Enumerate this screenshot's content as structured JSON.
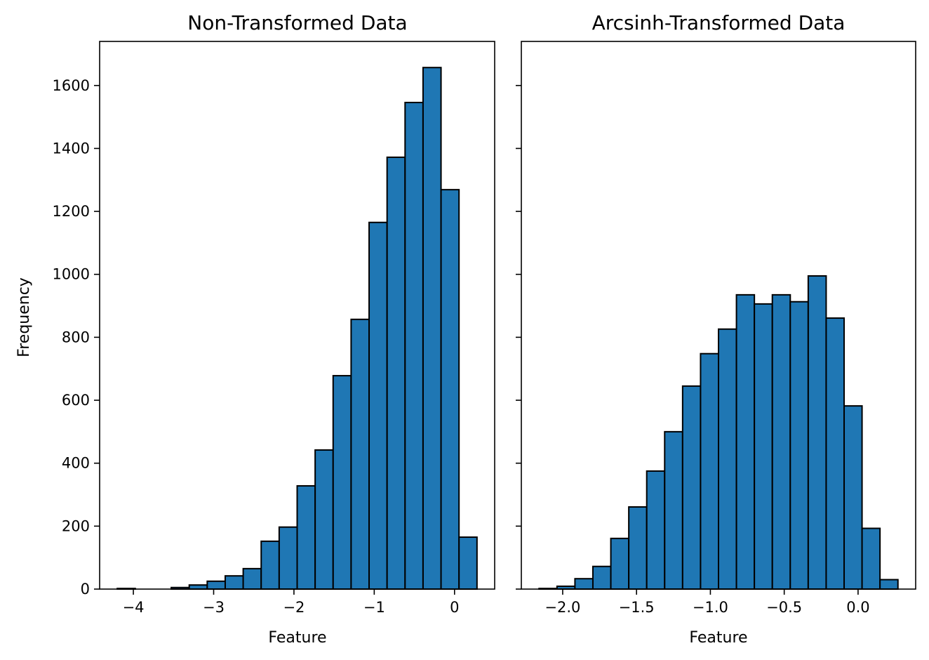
{
  "chart_data": [
    {
      "type": "bar",
      "subtype": "histogram",
      "title": "Non-Transformed Data",
      "xlabel": "Feature",
      "ylabel": "Frequency",
      "xlim": [
        -4.42,
        0.5
      ],
      "ylim": [
        0,
        1740
      ],
      "xticks": [
        -4,
        -3,
        -2,
        -1,
        0
      ],
      "xtick_labels": [
        "−4",
        "−3",
        "−2",
        "−1",
        "0"
      ],
      "yticks": [
        0,
        200,
        400,
        600,
        800,
        1000,
        1200,
        1400,
        1600
      ],
      "ytick_labels": [
        "0",
        "200",
        "400",
        "600",
        "800",
        "1000",
        "1200",
        "1400",
        "1600"
      ],
      "bin_start": -4.2,
      "bin_width": 0.224,
      "values": [
        2,
        0,
        0,
        5,
        13,
        25,
        42,
        65,
        152,
        197,
        328,
        442,
        678,
        857,
        1165,
        1372,
        1546,
        1657,
        1269,
        165
      ],
      "grid": false
    },
    {
      "type": "bar",
      "subtype": "histogram",
      "title": "Arcsinh-Transformed Data",
      "xlabel": "Feature",
      "ylabel": "",
      "xlim": [
        -2.28,
        0.39
      ],
      "ylim": [
        0,
        1740
      ],
      "xticks": [
        -2.0,
        -1.5,
        -1.0,
        -0.5,
        0.0
      ],
      "xtick_labels": [
        "−2.0",
        "−1.5",
        "−1.0",
        "−0.5",
        "0.0"
      ],
      "yticks": [
        0,
        200,
        400,
        600,
        800,
        1000,
        1200,
        1400,
        1600
      ],
      "ytick_labels": [],
      "bin_start": -2.16,
      "bin_width": 0.1215,
      "values": [
        2,
        9,
        33,
        72,
        161,
        261,
        375,
        500,
        645,
        748,
        826,
        935,
        906,
        935,
        913,
        995,
        861,
        582,
        193,
        30
      ],
      "grid": false
    }
  ]
}
